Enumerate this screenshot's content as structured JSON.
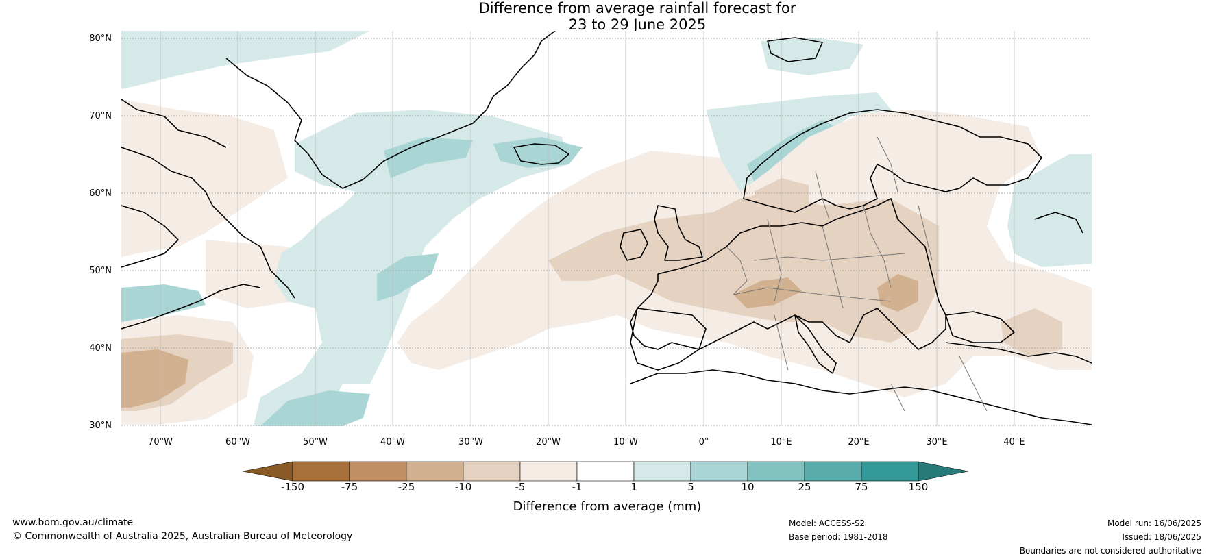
{
  "title": {
    "line1": "Difference from average rainfall forecast for",
    "line2": "23 to 29 June 2025"
  },
  "map": {
    "lat_labels": [
      "80°N",
      "70°N",
      "60°N",
      "50°N",
      "40°N",
      "30°N"
    ],
    "lon_labels": [
      "70°W",
      "60°W",
      "50°W",
      "40°W",
      "30°W",
      "20°W",
      "10°W",
      "0°",
      "10°E",
      "20°E",
      "30°E",
      "40°E"
    ]
  },
  "colorbar": {
    "label": "Difference from average (mm)",
    "ticks": [
      "-150",
      "-75",
      "-25",
      "-10",
      "-5",
      "-1",
      "1",
      "5",
      "10",
      "25",
      "75",
      "150"
    ],
    "colors": [
      "#8a5a26",
      "#a8703b",
      "#c08f63",
      "#d2b190",
      "#e6d2c0",
      "#f4ece5",
      "#ffffff",
      "#d5e9e8",
      "#a9d6d5",
      "#82c3c1",
      "#5bacac",
      "#35999a",
      "#267a7a"
    ]
  },
  "footer": {
    "website": "www.bom.gov.au/climate",
    "copyright": "© Commonwealth of Australia 2025, Australian Bureau of Meteorology",
    "model": "Model: ACCESS-S2",
    "base_period": "Base period: 1981-2018",
    "model_run": "Model run: 16/06/2025",
    "issued": "Issued: 18/06/2025",
    "disclaimer": "Boundaries are not considered authoritative"
  }
}
